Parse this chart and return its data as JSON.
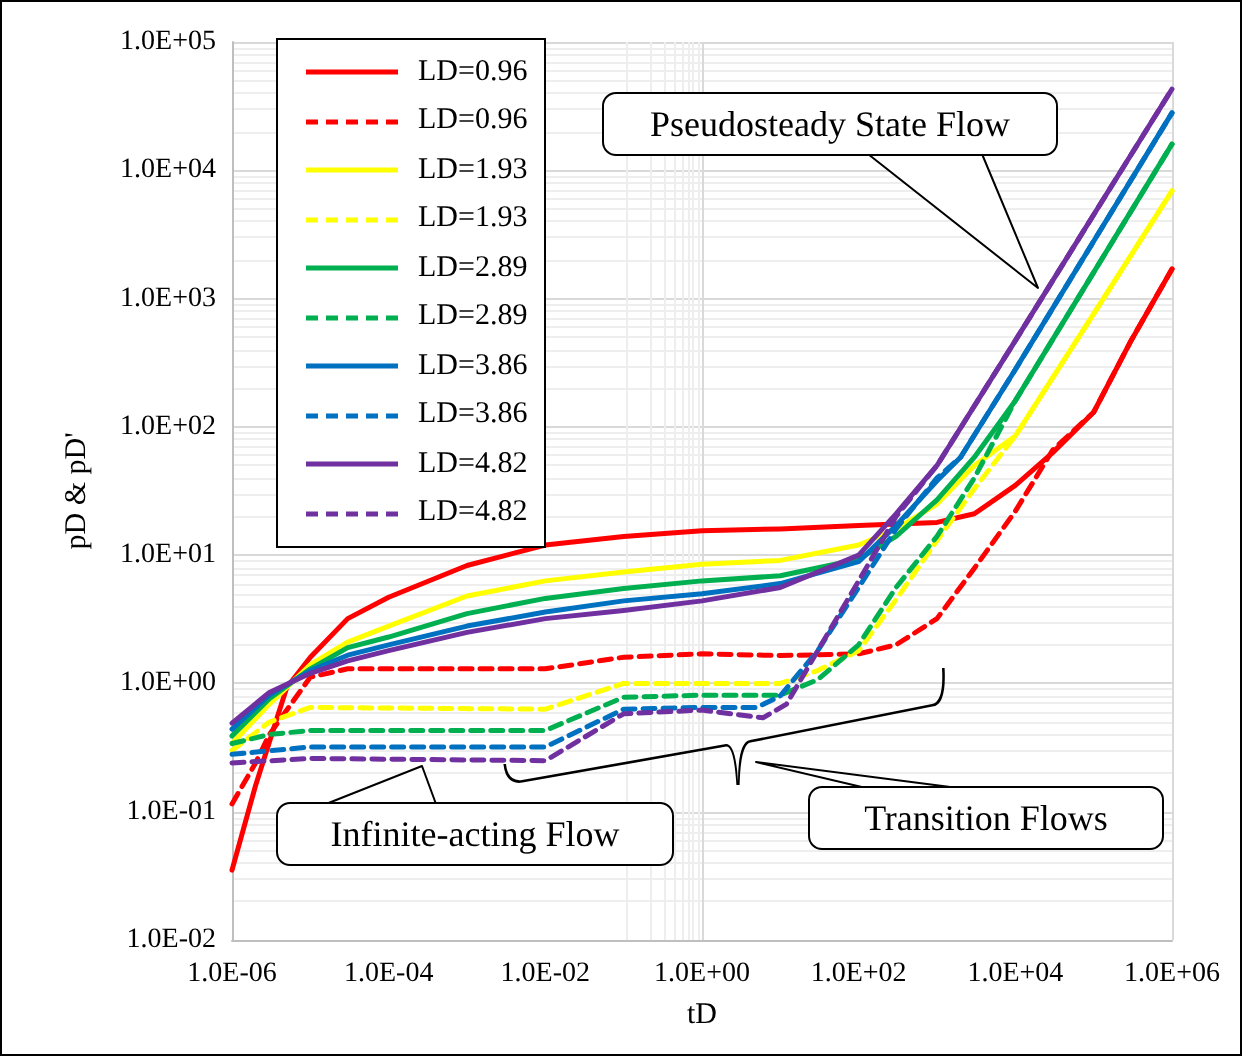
{
  "chart_data": {
    "type": "line",
    "xlabel": "tD",
    "ylabel": "pD & pD'",
    "log": "xy",
    "grid": true,
    "legend": "top left",
    "marker": "none",
    "xlim": [
      1e-06,
      1000000.0
    ],
    "ylim": [
      0.01,
      100000
    ],
    "xticks": [
      {
        "value": 1e-06,
        "label": "1.0E-06"
      },
      {
        "value": 0.0001,
        "label": "1.0E-04"
      },
      {
        "value": 0.01,
        "label": "1.0E-02"
      },
      {
        "value": 1,
        "label": "1.0E+00"
      },
      {
        "value": 100,
        "label": "1.0E+02"
      },
      {
        "value": 10000,
        "label": "1.0E+04"
      },
      {
        "value": 1000000,
        "label": "1.0E+06"
      }
    ],
    "yticks": [
      {
        "value": 0.01,
        "label": "1.0E-02"
      },
      {
        "value": 0.1,
        "label": "1.0E-01"
      },
      {
        "value": 1,
        "label": "1.0E+00"
      },
      {
        "value": 10,
        "label": "1.0E+01"
      },
      {
        "value": 100,
        "label": "1.0E+02"
      },
      {
        "value": 1000,
        "label": "1.0E+03"
      },
      {
        "value": 10000,
        "label": "1.0E+04"
      },
      {
        "value": 100000,
        "label": "1.0E+05"
      }
    ],
    "annotations": [
      "Pseudosteady State Flow",
      "Infinite-acting Flow",
      "Transition Flows"
    ],
    "series": [
      {
        "name": "LD=0.96",
        "color": "#ff0000",
        "line_style": "solid",
        "x": [
          1e-06,
          2e-06,
          3e-06,
          5e-06,
          1e-05,
          3e-05,
          0.0001,
          0.001,
          0.01,
          0.1,
          1,
          10,
          100,
          1000,
          3000,
          10000,
          30000,
          100000,
          300000,
          1000000
        ],
        "values": [
          0.035,
          0.16,
          0.35,
          0.93,
          1.6,
          3.2,
          4.7,
          8.3,
          12,
          14,
          15.5,
          16,
          17,
          18,
          21,
          35,
          63,
          130,
          470,
          1700
        ]
      },
      {
        "name": "LD=0.96",
        "color": "#ff0000",
        "line_style": "dashed",
        "x": [
          1e-06,
          2e-06,
          3e-06,
          1e-05,
          3e-05,
          0.01,
          0.1,
          1,
          10,
          100,
          300,
          1000,
          3000,
          10000,
          30000,
          100000,
          300000,
          1000000
        ],
        "values": [
          0.115,
          0.24,
          0.4,
          1.12,
          1.3,
          1.3,
          1.6,
          1.7,
          1.65,
          1.7,
          2.0,
          3.2,
          7.9,
          22,
          66,
          130,
          470,
          1700
        ]
      },
      {
        "name": "LD=1.93",
        "color": "#ffff00",
        "line_style": "solid",
        "x": [
          1e-06,
          3e-06,
          1e-05,
          3e-05,
          0.0001,
          0.001,
          0.01,
          0.1,
          1,
          10,
          100,
          300,
          1000,
          3000,
          10000,
          100000,
          1000000
        ],
        "values": [
          0.34,
          0.69,
          1.4,
          2.1,
          2.8,
          4.8,
          6.3,
          7.4,
          8.5,
          9.1,
          12,
          16,
          25,
          50,
          85,
          760,
          6900
        ]
      },
      {
        "name": "LD=1.93",
        "color": "#ffff00",
        "line_style": "dashed",
        "x": [
          1e-06,
          3e-06,
          1e-05,
          0.01,
          0.1,
          1,
          10,
          30,
          100,
          300,
          1000,
          3000,
          10000,
          100000,
          1000000
        ],
        "values": [
          0.3,
          0.5,
          0.65,
          0.63,
          1.0,
          1.0,
          1.0,
          1.26,
          1.8,
          4.5,
          13,
          33,
          85,
          760,
          6900
        ]
      },
      {
        "name": "LD=2.89",
        "color": "#00b050",
        "line_style": "solid",
        "x": [
          1e-06,
          3e-06,
          1e-05,
          3e-05,
          0.0001,
          0.001,
          0.01,
          0.1,
          1,
          10,
          100,
          300,
          1000,
          3000,
          10000,
          100000,
          1000000
        ],
        "values": [
          0.39,
          0.76,
          1.3,
          1.9,
          2.3,
          3.5,
          4.6,
          5.5,
          6.3,
          6.9,
          9.3,
          14,
          27,
          58,
          160,
          1600,
          16000
        ]
      },
      {
        "name": "LD=2.89",
        "color": "#00b050",
        "line_style": "dashed",
        "x": [
          1e-06,
          3e-06,
          1e-05,
          0.01,
          0.1,
          1,
          10,
          30,
          100,
          300,
          1000,
          3000,
          10000,
          100000,
          1000000
        ],
        "values": [
          0.34,
          0.4,
          0.43,
          0.43,
          0.78,
          0.81,
          0.81,
          1.07,
          2.0,
          5.6,
          14,
          40,
          160,
          1600,
          16000
        ]
      },
      {
        "name": "LD=3.86",
        "color": "#0070c0",
        "line_style": "solid",
        "x": [
          1e-06,
          3e-06,
          1e-05,
          3e-05,
          0.0001,
          0.001,
          0.01,
          0.1,
          1,
          10,
          100,
          300,
          1000,
          2000,
          10000,
          100000,
          1000000
        ],
        "values": [
          0.44,
          0.81,
          1.26,
          1.66,
          2.0,
          2.8,
          3.6,
          4.4,
          5.0,
          6.0,
          8.9,
          17,
          38,
          58,
          280,
          2800,
          28000
        ]
      },
      {
        "name": "LD=3.86",
        "color": "#0070c0",
        "line_style": "dashed",
        "x": [
          1e-06,
          1e-05,
          0.01,
          0.1,
          1,
          5,
          10,
          30,
          100,
          300,
          1000,
          2000,
          10000,
          100000,
          1000000
        ],
        "values": [
          0.28,
          0.32,
          0.32,
          0.63,
          0.65,
          0.65,
          0.8,
          1.8,
          5.6,
          16,
          40,
          58,
          280,
          2800,
          28000
        ]
      },
      {
        "name": "LD=4.82",
        "color": "#7030a0",
        "line_style": "solid",
        "x": [
          1e-06,
          3e-06,
          1e-05,
          3e-05,
          0.0001,
          0.001,
          0.01,
          0.1,
          1,
          10,
          100,
          300,
          1000,
          10000,
          100000,
          1000000
        ],
        "values": [
          0.49,
          0.85,
          1.2,
          1.5,
          1.8,
          2.5,
          3.2,
          3.7,
          4.4,
          5.6,
          10,
          21,
          50,
          470,
          4500,
          43000
        ]
      },
      {
        "name": "LD=4.82",
        "color": "#7030a0",
        "line_style": "dashed",
        "x": [
          1e-06,
          1e-05,
          0.01,
          0.1,
          1,
          6,
          12,
          30,
          100,
          300,
          1000,
          10000,
          100000,
          1000000
        ],
        "values": [
          0.24,
          0.26,
          0.25,
          0.58,
          0.62,
          0.54,
          0.69,
          1.8,
          6.3,
          20,
          50,
          470,
          4500,
          43000
        ]
      }
    ]
  }
}
